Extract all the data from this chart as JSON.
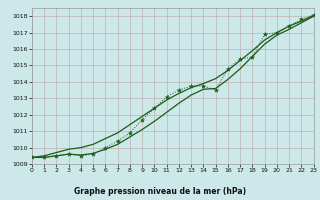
{
  "xlabel": "Graphe pression niveau de la mer (hPa)",
  "x": [
    0,
    1,
    2,
    3,
    4,
    5,
    6,
    7,
    8,
    9,
    10,
    11,
    12,
    13,
    14,
    15,
    16,
    17,
    18,
    19,
    20,
    21,
    22,
    23
  ],
  "y_main": [
    1009.4,
    1009.4,
    1009.5,
    1009.6,
    1009.5,
    1009.6,
    1010.0,
    1010.4,
    1010.9,
    1011.7,
    1012.4,
    1013.1,
    1013.5,
    1013.75,
    1013.75,
    1013.5,
    1014.8,
    1015.4,
    1015.5,
    1016.9,
    1017.0,
    1017.4,
    1017.8,
    1018.1
  ],
  "y_smooth_upper": [
    1009.4,
    1009.5,
    1009.7,
    1009.9,
    1010.0,
    1010.2,
    1010.55,
    1010.9,
    1011.4,
    1011.9,
    1012.4,
    1012.9,
    1013.3,
    1013.65,
    1013.9,
    1014.2,
    1014.7,
    1015.3,
    1015.9,
    1016.55,
    1017.0,
    1017.4,
    1017.7,
    1018.05
  ],
  "y_smooth_lower": [
    1009.4,
    1009.4,
    1009.5,
    1009.6,
    1009.55,
    1009.65,
    1009.9,
    1010.2,
    1010.65,
    1011.1,
    1011.6,
    1012.15,
    1012.7,
    1013.2,
    1013.55,
    1013.6,
    1014.15,
    1014.8,
    1015.55,
    1016.3,
    1016.85,
    1017.2,
    1017.6,
    1018.0
  ],
  "bg_color": "#cce8e8",
  "grid_color_major": "#c0b0b0",
  "line_color": "#1a5c1a",
  "ylim": [
    1009.0,
    1018.5
  ],
  "xlim": [
    0,
    23
  ],
  "yticks": [
    1009,
    1010,
    1011,
    1012,
    1013,
    1014,
    1015,
    1016,
    1017,
    1018
  ],
  "xticks": [
    0,
    1,
    2,
    3,
    4,
    5,
    6,
    7,
    8,
    9,
    10,
    11,
    12,
    13,
    14,
    15,
    16,
    17,
    18,
    19,
    20,
    21,
    22,
    23
  ]
}
